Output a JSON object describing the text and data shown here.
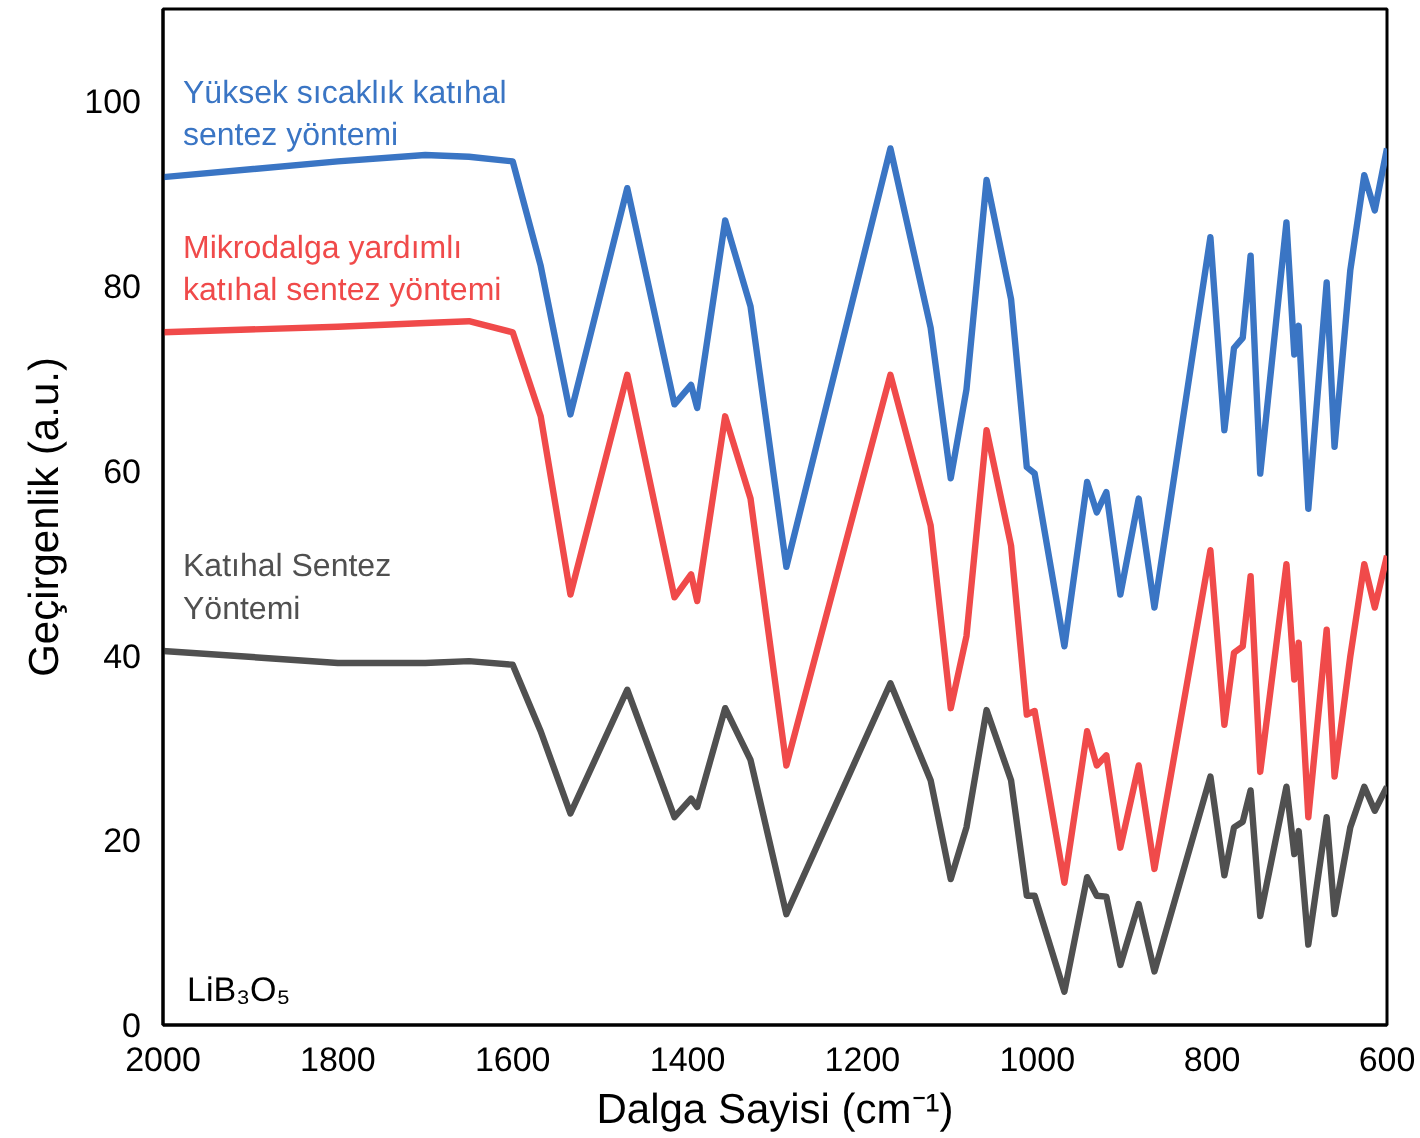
{
  "chart_data": {
    "type": "line",
    "xlabel": "Dalga Sayisi (cm⁻¹)",
    "ylabel": "Geçirgenlik (a.u.)",
    "x": [
      2000,
      1800,
      1700,
      1650,
      1600,
      1568,
      1534,
      1469,
      1415,
      1396,
      1389,
      1357,
      1328,
      1287,
      1168,
      1122,
      1099,
      1081,
      1058,
      1030,
      1012,
      1003,
      969,
      943,
      932,
      921,
      905,
      884,
      866,
      802,
      786,
      775,
      765,
      756,
      745,
      715,
      706,
      701,
      690,
      669,
      660,
      642,
      626,
      614,
      600
    ],
    "xlim": [
      2000,
      600
    ],
    "xticks": [
      2000,
      1800,
      1600,
      1400,
      1200,
      1000,
      800,
      600
    ],
    "ylim": [
      0,
      110
    ],
    "yticks": [
      0,
      20,
      40,
      60,
      80,
      100
    ],
    "grid": false,
    "legend": false,
    "line_style": "solid",
    "marker": "none",
    "series": [
      {
        "name": "Yüksek sıcaklık katıhal\nsentez yöntemi",
        "color": "#3a75c4",
        "values": [
          91.8,
          93.5,
          94.2,
          94.0,
          93.5,
          82.2,
          66.1,
          90.6,
          67.2,
          69.3,
          66.8,
          87.1,
          77.8,
          49.6,
          94.9,
          75.5,
          59.2,
          68.8,
          91.5,
          78.6,
          60.4,
          59.7,
          41.0,
          58.8,
          55.5,
          57.7,
          46.6,
          57.0,
          45.2,
          85.3,
          64.4,
          73.3,
          74.4,
          83.3,
          59.7,
          86.9,
          72.6,
          75.7,
          55.9,
          80.4,
          62.6,
          81.7,
          92.0,
          88.2,
          94.9
        ]
      },
      {
        "name": "Mikrodalga yardımlı\nkatıhal sentez yöntemi",
        "color": "#f04a4a",
        "values": [
          75.0,
          75.6,
          76.0,
          76.2,
          75.0,
          65.9,
          46.6,
          70.4,
          46.3,
          48.8,
          45.9,
          65.9,
          57.0,
          28.1,
          70.4,
          54.1,
          34.3,
          42.1,
          64.4,
          51.9,
          33.6,
          34.0,
          15.4,
          31.8,
          28.1,
          29.2,
          19.2,
          28.1,
          16.9,
          51.4,
          32.5,
          40.3,
          41.0,
          48.6,
          27.4,
          49.9,
          37.4,
          41.4,
          22.5,
          42.8,
          26.9,
          39.9,
          49.9,
          45.2,
          50.8
        ]
      },
      {
        "name": "Katıhal Sentez\nYöntemi",
        "color": "#505050",
        "values": [
          40.5,
          39.2,
          39.2,
          39.4,
          39.0,
          31.8,
          22.9,
          36.3,
          22.5,
          24.5,
          23.6,
          34.3,
          28.7,
          12.0,
          37.0,
          26.5,
          15.8,
          21.4,
          34.1,
          26.5,
          14.0,
          14.0,
          3.6,
          16.0,
          14.0,
          13.9,
          6.5,
          13.1,
          5.8,
          26.9,
          16.2,
          21.4,
          22.0,
          25.4,
          11.8,
          25.8,
          18.5,
          21.0,
          8.7,
          22.5,
          12.0,
          21.4,
          25.8,
          23.2,
          25.8
        ]
      }
    ],
    "annotations": [
      "LiB₃O₅"
    ]
  }
}
